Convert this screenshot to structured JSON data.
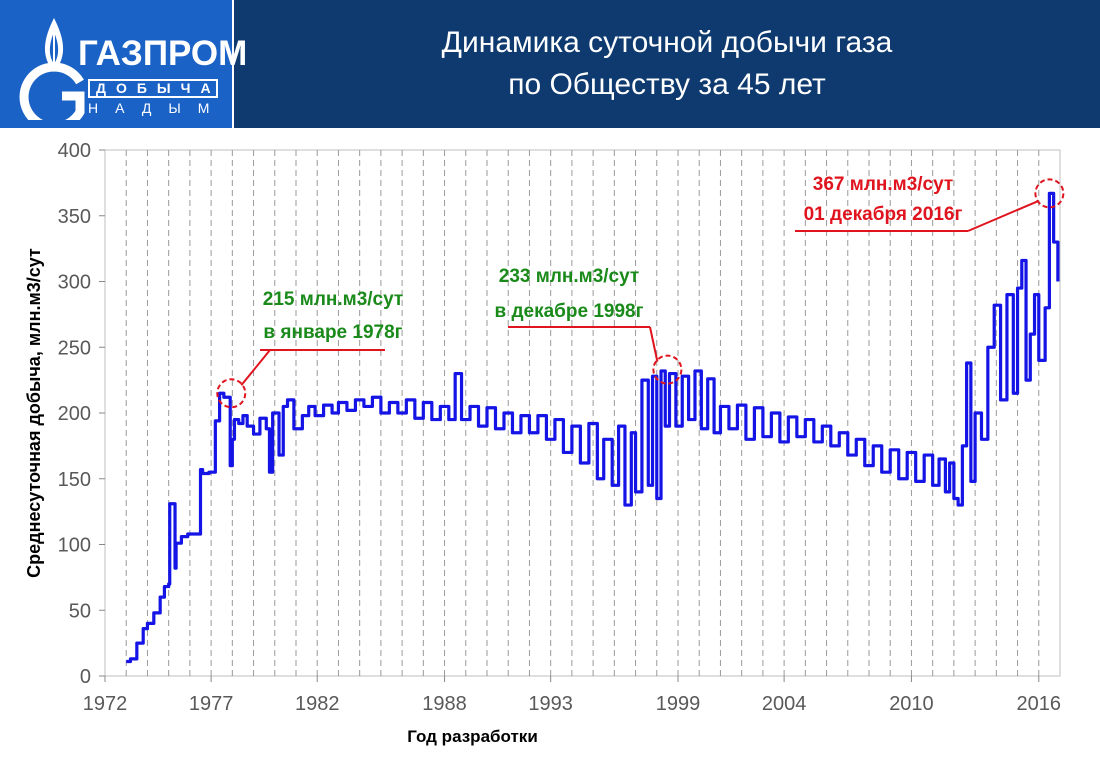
{
  "header": {
    "logo_text": "ГАЗПРОМ",
    "logo_sub1": "ДОБЫЧА",
    "logo_sub2": "НАДЫМ",
    "title_line1": "Динамика суточной добычи газа",
    "title_line2": "по Обществу за 45 лет"
  },
  "colors": {
    "header_bg": "#0e3a6f",
    "logo_bg": "#1a62c6",
    "series": "#1414e6",
    "red": "#e0141e",
    "green": "#1a8a1a"
  },
  "chart_data": {
    "type": "line",
    "xlabel": "Год разработки",
    "ylabel": "Среднесуточная добыча, млн.м3/сут",
    "ylim": [
      0,
      400
    ],
    "yticks": [
      0,
      50,
      100,
      150,
      200,
      250,
      300,
      350,
      400
    ],
    "xticks": [
      "1972",
      "1977",
      "1982",
      "1988",
      "1993",
      "1999",
      "2004",
      "2010",
      "2016"
    ],
    "grid": "vertical-dashed-yearly",
    "series": [
      {
        "x": [
          1973.0,
          1973.2,
          1973.5,
          1973.8,
          1974.0,
          1974.3,
          1974.6,
          1974.8,
          1975.0,
          1975.05,
          1975.3,
          1975.35,
          1975.6,
          1975.9,
          1976.2,
          1976.5,
          1976.6,
          1976.9,
          1977.2,
          1977.4,
          1977.6,
          1977.9,
          1978.0,
          1978.1,
          1978.3,
          1978.5,
          1978.7,
          1979.0,
          1979.3,
          1979.6,
          1979.75,
          1979.9,
          1980.2,
          1980.4,
          1980.6,
          1980.9,
          1981.3,
          1981.6,
          1981.9,
          1982.3,
          1982.7,
          1983.0,
          1983.4,
          1983.8,
          1984.2,
          1984.6,
          1985.0,
          1985.4,
          1985.8,
          1986.2,
          1986.6,
          1987.0,
          1987.4,
          1987.8,
          1988.2,
          1988.5,
          1988.8,
          1989.2,
          1989.6,
          1990.0,
          1990.4,
          1990.8,
          1991.2,
          1991.6,
          1992.0,
          1992.4,
          1992.8,
          1993.2,
          1993.6,
          1994.0,
          1994.4,
          1994.8,
          1995.2,
          1995.5,
          1995.9,
          1996.2,
          1996.5,
          1996.8,
          1997.0,
          1997.3,
          1997.6,
          1997.8,
          1998.0,
          1998.2,
          1998.4,
          1998.6,
          1998.9,
          1999.2,
          1999.5,
          1999.8,
          2000.1,
          2000.4,
          2000.7,
          2001.0,
          2001.4,
          2001.8,
          2002.2,
          2002.6,
          2003.0,
          2003.4,
          2003.8,
          2004.2,
          2004.6,
          2005.0,
          2005.4,
          2005.8,
          2006.2,
          2006.6,
          2007.0,
          2007.4,
          2007.8,
          2008.2,
          2008.6,
          2009.0,
          2009.4,
          2009.8,
          2010.2,
          2010.6,
          2011.0,
          2011.3,
          2011.6,
          2011.8,
          2012.0,
          2012.2,
          2012.4,
          2012.6,
          2012.8,
          2013.0,
          2013.3,
          2013.6,
          2013.9,
          2014.2,
          2014.5,
          2014.8,
          2015.0,
          2015.2,
          2015.4,
          2015.6,
          2015.8,
          2016.0,
          2016.3,
          2016.5,
          2016.7,
          2016.9
        ],
        "values": [
          11,
          13,
          25,
          36,
          40,
          48,
          60,
          68,
          70,
          131,
          82,
          101,
          106,
          108,
          108,
          157,
          154,
          155,
          194,
          215,
          212,
          160,
          180,
          195,
          192,
          198,
          190,
          184,
          196,
          188,
          155,
          200,
          168,
          205,
          210,
          188,
          198,
          205,
          198,
          206,
          200,
          208,
          202,
          210,
          205,
          212,
          200,
          208,
          200,
          210,
          196,
          208,
          195,
          205,
          195,
          230,
          195,
          205,
          190,
          204,
          188,
          200,
          185,
          198,
          185,
          198,
          180,
          195,
          170,
          190,
          162,
          192,
          150,
          180,
          145,
          190,
          130,
          185,
          140,
          225,
          145,
          228,
          135,
          232,
          190,
          230,
          190,
          228,
          195,
          232,
          188,
          226,
          185,
          205,
          188,
          206,
          180,
          204,
          182,
          200,
          178,
          197,
          182,
          195,
          178,
          190,
          175,
          185,
          168,
          180,
          160,
          175,
          155,
          172,
          150,
          170,
          148,
          168,
          145,
          165,
          140,
          162,
          135,
          130,
          175,
          238,
          148,
          200,
          180,
          250,
          282,
          210,
          290,
          215,
          295,
          316,
          225,
          260,
          290,
          240,
          280,
          367,
          330,
          300
        ]
      }
    ],
    "annotations": [
      {
        "text": "215 млн.м3/сут",
        "text2": "в январе 1978г",
        "color": "green",
        "x": 1977.9,
        "y": 215
      },
      {
        "text": "233 млн.м3/сут",
        "text2": "в декабре 1998г",
        "color": "green",
        "x": 1998.4,
        "y": 233
      },
      {
        "text": "367 млн.м3/сут",
        "text2": "01 декабря 2016г",
        "color": "red",
        "x": 2016.3,
        "y": 367
      }
    ]
  }
}
